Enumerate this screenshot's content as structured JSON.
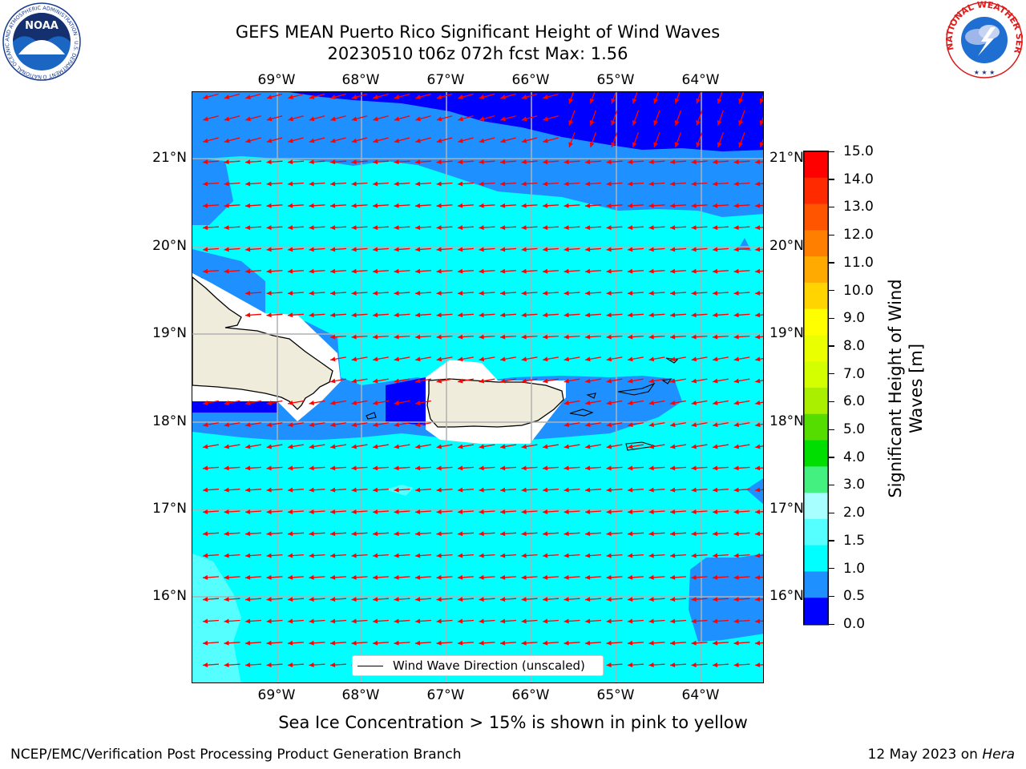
{
  "title_line1": "GEFS MEAN Puerto Rico Significant Height of Wind Waves",
  "title_line2": "20230510 t06z 072h fcst   Max: 1.56",
  "lon_labels": [
    "69°W",
    "68°W",
    "67°W",
    "66°W",
    "65°W",
    "64°W"
  ],
  "lat_labels": [
    "21°N",
    "20°N",
    "19°N",
    "18°N",
    "17°N",
    "16°N"
  ],
  "colorbar": {
    "label_line1": "Significant Height of Wind",
    "label_line2": "Waves [m]",
    "ticks": [
      "15.0",
      "14.0",
      "13.0",
      "12.0",
      "11.0",
      "10.0",
      "9.0",
      "8.0",
      "7.0",
      "6.0",
      "5.0",
      "4.0",
      "3.0",
      "2.0",
      "1.5",
      "1.0",
      "0.5",
      "0.0"
    ],
    "colors": [
      "#ff0000",
      "#ff2a00",
      "#ff5500",
      "#ff8000",
      "#ffaa00",
      "#ffd400",
      "#ffff00",
      "#eaff00",
      "#d4ff00",
      "#aaef00",
      "#55dd00",
      "#00dd00",
      "#44f080",
      "#a8ffff",
      "#55ffff",
      "#00ffff",
      "#1e90ff",
      "#0000ff"
    ]
  },
  "legend_label": "Wind Wave Direction (unscaled)",
  "caption": "Sea Ice Concentration > 15% is shown in pink to yellow",
  "footer_left": "NCEP/EMC/Verification Post Processing Product Generation Branch",
  "footer_right_date": "12 May 2023 on ",
  "footer_right_host": "Hera",
  "logos": {
    "noaa_text": "NOAA",
    "noaa_ring": "NATIONAL OCEANIC AND ATMOSPHERIC ADMINISTRATION · U.S. DEPARTMENT OF COMMERCE ·",
    "nws_ring": "NATIONAL WEATHER SERVICE"
  },
  "map_colors": {
    "ocean_05_1": "#1e90ff",
    "ocean_1_15": "#00ffff",
    "ocean_15_2": "#55ffff",
    "ocean_0_05": "#0000ff",
    "land": "#efecdc",
    "arrow": "#ff0000",
    "grid": "#b0b0b0"
  }
}
